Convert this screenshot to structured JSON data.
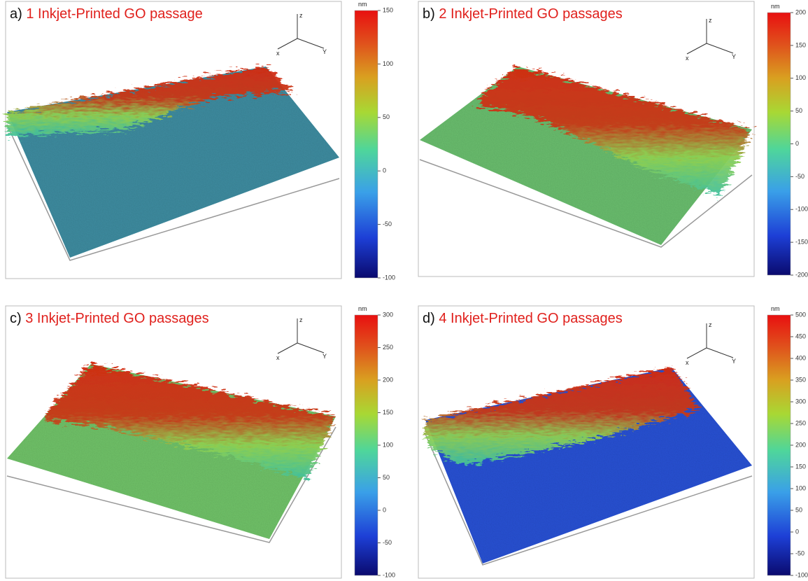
{
  "panels": [
    {
      "label": "a)",
      "title": "1 Inkjet-Printed GO passage",
      "unit": "nm",
      "axes": [
        "z",
        "x",
        "Y"
      ],
      "colorbar_ticks": [
        "150",
        "100",
        "50",
        "0",
        "-50",
        "-100"
      ]
    },
    {
      "label": "b)",
      "title": "2 Inkjet-Printed GO passages",
      "unit": "nm",
      "axes": [
        "z",
        "x",
        "Y"
      ],
      "colorbar_ticks": [
        "200",
        "150",
        "100",
        "50",
        "0",
        "-50",
        "-100",
        "-150",
        "-200"
      ]
    },
    {
      "label": "c)",
      "title": "3 Inkjet-Printed GO passages",
      "unit": "nm",
      "axes": [
        "z",
        "x",
        "Y"
      ],
      "colorbar_ticks": [
        "300",
        "250",
        "200",
        "150",
        "100",
        "50",
        "0",
        "-50",
        "-100"
      ]
    },
    {
      "label": "d)",
      "title": "4 Inkjet-Printed GO passages",
      "unit": "nm",
      "axes": [
        "z",
        "x",
        "Y"
      ],
      "colorbar_ticks": [
        "500",
        "450",
        "400",
        "350",
        "300",
        "250",
        "200",
        "150",
        "100",
        "50",
        "0",
        "-50",
        "-100"
      ]
    }
  ]
}
